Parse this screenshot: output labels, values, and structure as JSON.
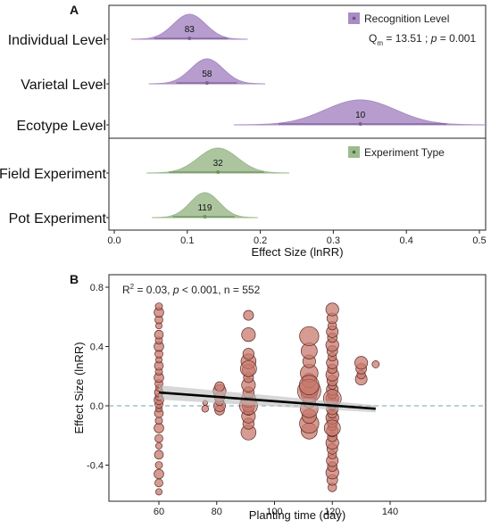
{
  "chart_data": [
    {
      "type": "density",
      "panel_label": "A",
      "xlabel": "Effect Size (lnRR)",
      "xlim": [
        -0.02,
        0.5
      ],
      "xticks": [
        "0.0",
        "0.1",
        "0.2",
        "0.3",
        "0.4",
        "0.5"
      ],
      "xtick_values": [
        0,
        0.1,
        0.2,
        0.3,
        0.4,
        0.5
      ],
      "groups": [
        {
          "legend": "Recognition Level",
          "color": "#a98cc4",
          "stat_prefix": "Q",
          "stat_sub": "m",
          "stat_eq": " = 13.51 ;  ",
          "stat_p": "p",
          "stat_pval": " = 0.001",
          "categories": [
            {
              "label": "Individual Level",
              "mean": 0.103,
              "sd": 0.022,
              "ci": [
                0.055,
                0.155
              ],
              "n": "83"
            },
            {
              "label": "Varietal Level",
              "mean": 0.127,
              "sd": 0.022,
              "ci": [
                0.085,
                0.168
              ],
              "n": "58"
            },
            {
              "label": "Ecotype Level",
              "mean": 0.337,
              "sd": 0.048,
              "ci": [
                0.225,
                0.455
              ],
              "n": "10"
            }
          ]
        },
        {
          "legend": "Experiment Type",
          "color": "#9dbb8e",
          "categories": [
            {
              "label": "Field Experiment",
              "mean": 0.142,
              "sd": 0.027,
              "ci": [
                0.075,
                0.205
              ],
              "n": "32"
            },
            {
              "label": "Pot Experiment",
              "mean": 0.124,
              "sd": 0.02,
              "ci": [
                0.08,
                0.165
              ],
              "n": "119"
            }
          ]
        }
      ]
    },
    {
      "type": "scatter",
      "panel_label": "B",
      "xlabel": "Planting time (day)",
      "ylabel": "Effect Size (lnRR)",
      "xlim": [
        45,
        160
      ],
      "ylim": [
        -0.65,
        0.87
      ],
      "xticks": [
        "60",
        "80",
        "100",
        "120",
        "140"
      ],
      "xtick_values": [
        60,
        80,
        100,
        120,
        140
      ],
      "yticks": [
        "-0.4",
        "0.0",
        "0.4",
        "0.8"
      ],
      "ytick_values": [
        -0.4,
        0,
        0.4,
        0.8
      ],
      "annotation_prefix": "R",
      "annotation_sup": "2",
      "annotation_mid": " = 0.03, ",
      "annotation_p": "p",
      "annotation_rest": " < 0.001, n = 552",
      "regression": {
        "x": [
          60,
          135
        ],
        "y": [
          0.09,
          -0.02
        ]
      },
      "reference_line": 0,
      "point_color": "#c87a6e",
      "clusters": [
        {
          "x": 60,
          "values": [
            -0.58,
            -0.52,
            -0.46,
            -0.4,
            -0.33,
            -0.27,
            -0.22,
            -0.15,
            -0.1,
            -0.05,
            -0.02,
            0.01,
            0.04,
            0.06,
            0.09,
            0.12,
            0.15,
            0.19,
            0.23,
            0.27,
            0.31,
            0.35,
            0.4,
            0.44,
            0.48,
            0.54,
            0.58,
            0.63,
            0.67
          ],
          "size": 4.5
        },
        {
          "x": 76,
          "values": [
            -0.02,
            0.02
          ],
          "size": 3.5
        },
        {
          "x": 81,
          "values": [
            -0.03,
            0.0,
            0.03,
            0.06,
            0.1,
            0.13
          ],
          "size": 6
        },
        {
          "x": 91,
          "values": [
            -0.18,
            -0.12,
            -0.07,
            -0.03,
            0.0,
            0.04,
            0.09,
            0.14,
            0.19,
            0.24,
            0.3,
            0.35,
            0.48,
            0.61
          ],
          "size": 7
        },
        {
          "x": 112,
          "values": [
            -0.17,
            -0.12,
            -0.07,
            -0.02,
            0.03,
            0.08,
            0.12,
            0.17,
            0.22,
            0.3,
            0.37,
            0.47
          ],
          "size": 9
        },
        {
          "x": 120,
          "values": [
            -0.55,
            -0.5,
            -0.45,
            -0.41,
            -0.37,
            -0.33,
            -0.29,
            -0.25,
            -0.21,
            -0.17,
            -0.14,
            -0.11,
            -0.08,
            -0.05,
            -0.02,
            0.0,
            0.02,
            0.05,
            0.08,
            0.11,
            0.14,
            0.17,
            0.21,
            0.25,
            0.29,
            0.33,
            0.37,
            0.41,
            0.46,
            0.5,
            0.54,
            0.59,
            0.65
          ],
          "size": 6
        },
        {
          "x": 130,
          "values": [
            0.18,
            0.21,
            0.25,
            0.29
          ],
          "size": 6
        },
        {
          "x": 135,
          "values": [
            0.28
          ],
          "size": 4.5
        }
      ],
      "big_points": [
        {
          "x": 112,
          "y": 0.1,
          "size": 13
        },
        {
          "x": 112,
          "y": 0.14,
          "size": 11
        },
        {
          "x": 91,
          "y": 0.0,
          "size": 10
        },
        {
          "x": 91,
          "y": 0.25,
          "size": 9
        },
        {
          "x": 120,
          "y": 0.05,
          "size": 10
        },
        {
          "x": 120,
          "y": -0.15,
          "size": 9
        }
      ]
    }
  ]
}
